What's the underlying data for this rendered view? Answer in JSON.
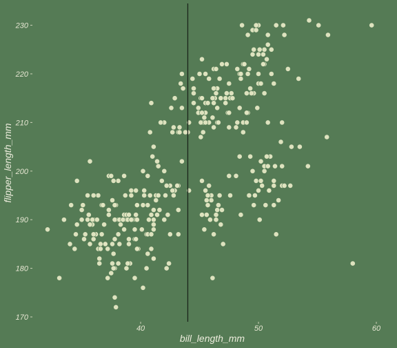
{
  "chart_data": {
    "type": "scatter",
    "title": "",
    "xlabel": "bill_length_mm",
    "ylabel": "flipper_length_mm",
    "xlim": [
      32.1,
      60.0
    ],
    "ylim": [
      170.0,
      231.5
    ],
    "xticks": [
      40,
      50,
      60
    ],
    "yticks": [
      170,
      180,
      190,
      200,
      210,
      220,
      230
    ],
    "grid": false,
    "legend": "none",
    "vline_x": 44,
    "colors": {
      "background": "#557b55",
      "point": "#e2e6c2",
      "vline": "#1b241b"
    },
    "x": [
      39.1,
      39.5,
      40.3,
      36.7,
      39.3,
      38.9,
      39.2,
      34.1,
      42.0,
      37.8,
      37.8,
      41.1,
      38.6,
      34.6,
      36.6,
      38.7,
      42.5,
      34.4,
      46.0,
      37.8,
      37.7,
      35.9,
      38.2,
      38.8,
      35.3,
      40.6,
      40.5,
      37.9,
      40.5,
      39.5,
      37.2,
      39.5,
      40.9,
      36.4,
      39.2,
      38.8,
      42.2,
      37.6,
      39.8,
      36.5,
      40.8,
      36.0,
      44.1,
      37.0,
      39.6,
      41.1,
      37.5,
      36.0,
      42.3,
      39.6,
      40.1,
      35.0,
      42.0,
      34.5,
      41.4,
      39.0,
      40.6,
      36.5,
      37.6,
      35.7,
      41.3,
      37.6,
      41.1,
      36.4,
      41.6,
      35.5,
      41.1,
      35.9,
      41.8,
      33.5,
      39.7,
      39.6,
      45.8,
      35.5,
      42.8,
      40.9,
      37.2,
      36.2,
      42.1,
      34.6,
      42.9,
      36.7,
      35.1,
      37.3,
      41.3,
      36.3,
      36.9,
      38.3,
      38.9,
      35.7,
      41.1,
      34.0,
      39.6,
      36.2,
      40.8,
      38.1,
      40.3,
      33.1,
      43.2,
      35.0,
      41.0,
      37.7,
      37.8,
      37.9,
      39.7,
      38.6,
      38.2,
      38.1,
      43.2,
      38.1,
      45.6,
      39.7,
      42.2,
      39.6,
      42.7,
      38.6,
      37.3,
      35.7,
      41.1,
      36.2,
      37.7,
      40.2,
      41.4,
      35.2,
      40.6,
      38.8,
      41.5,
      39.0,
      44.1,
      38.5,
      43.1,
      36.8,
      37.5,
      38.1,
      41.1,
      35.6,
      40.2,
      37.0,
      39.7,
      40.2,
      40.6,
      32.1,
      40.7,
      37.3,
      39.0,
      39.2,
      36.6,
      36.0,
      37.8,
      36.0,
      41.5,
      46.1,
      50.0,
      48.7,
      50.0,
      47.6,
      46.5,
      45.4,
      46.7,
      43.3,
      46.8,
      40.9,
      49.0,
      45.5,
      48.4,
      45.8,
      49.3,
      42.0,
      49.2,
      46.2,
      48.7,
      50.2,
      45.1,
      46.5,
      46.3,
      42.9,
      46.1,
      44.5,
      47.8,
      48.2,
      50.0,
      47.3,
      42.8,
      45.1,
      59.6,
      49.1,
      48.4,
      42.6,
      44.4,
      44.0,
      48.7,
      42.7,
      49.6,
      45.3,
      49.6,
      50.5,
      43.6,
      45.5,
      50.5,
      44.9,
      45.2,
      46.6,
      48.5,
      45.1,
      50.1,
      46.5,
      45.0,
      43.8,
      45.5,
      43.2,
      50.4,
      45.3,
      46.2,
      45.7,
      54.3,
      45.8,
      49.8,
      46.2,
      49.5,
      43.5,
      50.7,
      47.7,
      46.4,
      48.2,
      46.5,
      46.4,
      48.6,
      47.5,
      51.1,
      45.2,
      45.2,
      49.1,
      52.5,
      47.4,
      50.0,
      44.9,
      50.8,
      43.4,
      51.3,
      47.5,
      52.1,
      47.5,
      52.2,
      45.5,
      49.5,
      44.5,
      50.8,
      49.4,
      46.9,
      48.4,
      51.1,
      48.5,
      55.9,
      47.2,
      49.1,
      47.3,
      46.8,
      41.7,
      53.4,
      43.3,
      48.1,
      50.5,
      49.8,
      43.5,
      51.5,
      46.2,
      55.1,
      44.5,
      48.8,
      47.2,
      46.8,
      50.4,
      45.2,
      49.9,
      46.5,
      50.0,
      51.3,
      45.4,
      52.7,
      45.2,
      46.1,
      51.3,
      46.0,
      51.3,
      46.6,
      51.7,
      47.0,
      52.0,
      45.9,
      50.5,
      50.3,
      58.0,
      46.4,
      49.2,
      42.4,
      48.5,
      43.2,
      50.6,
      46.7,
      52.0,
      50.5,
      49.5,
      46.4,
      52.8,
      40.9,
      54.2,
      42.5,
      51.0,
      49.7,
      47.5,
      47.6,
      52.0,
      46.9,
      53.5,
      49.0,
      46.2,
      50.9,
      45.5,
      50.9,
      50.8,
      50.1,
      49.0,
      51.5,
      49.8,
      48.1,
      51.4,
      45.7,
      50.7,
      42.5,
      52.2,
      45.2,
      49.3,
      50.2,
      45.6,
      51.9,
      46.8,
      45.7,
      55.8,
      43.5,
      49.6,
      50.8,
      50.2
    ],
    "y": [
      181,
      186,
      195,
      193,
      190,
      181,
      195,
      193,
      190,
      186,
      180,
      182,
      191,
      198,
      185,
      195,
      197,
      184,
      194,
      174,
      180,
      189,
      185,
      180,
      187,
      183,
      187,
      172,
      180,
      178,
      178,
      188,
      184,
      195,
      196,
      190,
      180,
      181,
      184,
      182,
      195,
      186,
      196,
      185,
      190,
      182,
      179,
      190,
      191,
      186,
      188,
      190,
      200,
      187,
      191,
      186,
      193,
      181,
      194,
      185,
      195,
      185,
      192,
      184,
      192,
      195,
      188,
      190,
      198,
      190,
      190,
      196,
      197,
      190,
      195,
      191,
      184,
      187,
      195,
      189,
      196,
      187,
      193,
      191,
      194,
      190,
      189,
      189,
      190,
      202,
      205,
      185,
      186,
      187,
      208,
      190,
      196,
      178,
      192,
      192,
      203,
      183,
      190,
      193,
      184,
      199,
      190,
      181,
      197,
      198,
      191,
      193,
      197,
      191,
      196,
      188,
      199,
      189,
      189,
      187,
      198,
      176,
      202,
      186,
      199,
      191,
      195,
      191,
      210,
      190,
      197,
      193,
      199,
      187,
      190,
      191,
      200,
      185,
      193,
      193,
      187,
      188,
      190,
      192,
      185,
      190,
      184,
      195,
      193,
      187,
      201,
      211,
      230,
      210,
      218,
      215,
      210,
      211,
      219,
      209,
      215,
      214,
      216,
      214,
      213,
      210,
      217,
      210,
      221,
      209,
      222,
      218,
      215,
      213,
      215,
      215,
      215,
      216,
      215,
      210,
      220,
      222,
      209,
      207,
      230,
      220,
      220,
      213,
      219,
      208,
      208,
      208,
      225,
      210,
      216,
      222,
      217,
      210,
      225,
      213,
      215,
      210,
      220,
      210,
      225,
      217,
      220,
      208,
      220,
      208,
      224,
      208,
      221,
      214,
      231,
      219,
      230,
      214,
      229,
      220,
      223,
      216,
      221,
      221,
      217,
      216,
      230,
      209,
      220,
      215,
      223,
      212,
      221,
      212,
      224,
      212,
      228,
      218,
      218,
      212,
      230,
      218,
      228,
      212,
      224,
      214,
      226,
      216,
      222,
      203,
      225,
      219,
      228,
      215,
      228,
      216,
      215,
      210,
      219,
      208,
      209,
      216,
      229,
      213,
      230,
      217,
      230,
      217,
      222,
      214,
      215,
      222,
      212,
      213,
      192,
      196,
      193,
      188,
      197,
      198,
      178,
      197,
      195,
      198,
      193,
      194,
      185,
      201,
      190,
      201,
      197,
      181,
      190,
      195,
      181,
      191,
      187,
      193,
      195,
      197,
      200,
      200,
      191,
      205,
      187,
      201,
      187,
      203,
      195,
      199,
      195,
      210,
      192,
      205,
      210,
      187,
      196,
      196,
      196,
      201,
      190,
      212,
      187,
      198,
      199,
      201,
      193,
      203,
      187,
      197,
      191,
      203,
      202,
      194,
      206,
      189,
      195,
      207,
      202,
      193,
      210,
      198
    ]
  }
}
